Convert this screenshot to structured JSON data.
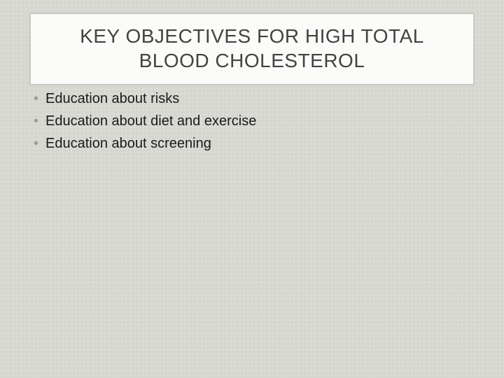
{
  "slide": {
    "background_color": "#d8d8d2",
    "title_box": {
      "bg_color": "#fbfbfa",
      "border_color": "#c6c8bf",
      "border_width": 2,
      "title_line1": "KEY OBJECTIVES FOR HIGH TOTAL",
      "title_line2": "BLOOD CHOLESTEROL",
      "title_color": "#434340",
      "title_fontsize": 28
    },
    "bullets": {
      "dot_color": "#9aa297",
      "text_color": "#1a1a1a",
      "fontsize": 20,
      "items": [
        "Education about risks",
        "Education about diet and exercise",
        "Education about screening"
      ]
    }
  }
}
